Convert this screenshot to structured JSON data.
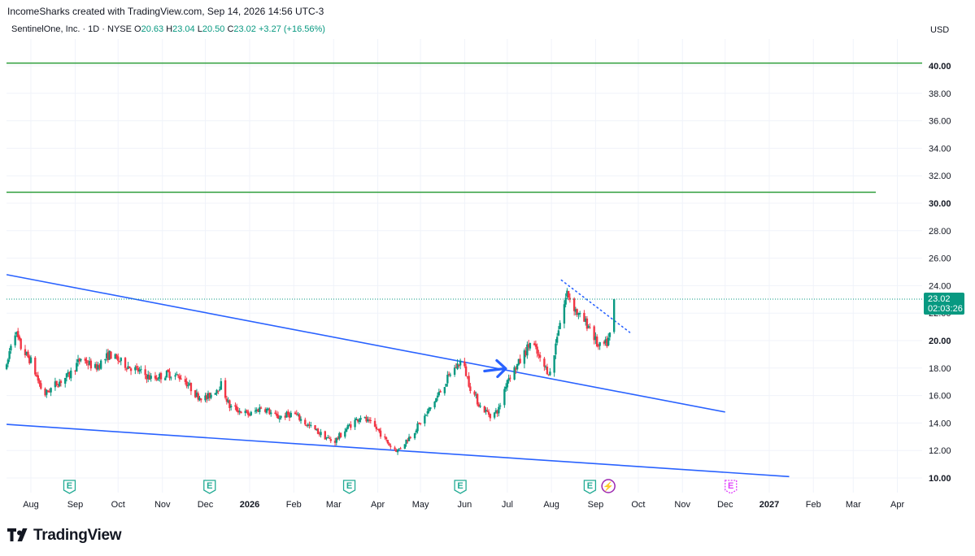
{
  "header": {
    "attribution": "IncomeSharks created with TradingView.com, Sep 14, 2026 14:56 UTC-3"
  },
  "legend": {
    "symbol": "SentinelOne, Inc. · 1D · NYSE",
    "open_label": "O",
    "open": "20.63",
    "high_label": "H",
    "high": "23.04",
    "low_label": "L",
    "low": "20.50",
    "close_label": "C",
    "close": "23.02",
    "change": "+3.27 (+16.56%)"
  },
  "currency": "USD",
  "price_tag": {
    "price": "23.02",
    "countdown": "02:03:26"
  },
  "footer": {
    "brand": "TradingView"
  },
  "colors": {
    "up": "#089981",
    "down": "#f23645",
    "trendline": "#2962ff",
    "level": "#2e9e3a",
    "grid": "#f0f3fa",
    "earnings": "#22ab94",
    "dividend": "#9c27b0"
  },
  "chart_data": {
    "type": "candlestick",
    "ylim": [
      9,
      42
    ],
    "y_ticks": [
      "10.00",
      "12.00",
      "14.00",
      "16.00",
      "18.00",
      "20.00",
      "22.00",
      "24.00",
      "26.00",
      "28.00",
      "30.00",
      "32.00",
      "34.00",
      "36.00",
      "38.00",
      "40.00"
    ],
    "x_ticks": [
      {
        "label": "Aug",
        "bold": false
      },
      {
        "label": "Sep",
        "bold": false
      },
      {
        "label": "Oct",
        "bold": false
      },
      {
        "label": "Nov",
        "bold": false
      },
      {
        "label": "Dec",
        "bold": false
      },
      {
        "label": "2026",
        "bold": true
      },
      {
        "label": "Feb",
        "bold": false
      },
      {
        "label": "Mar",
        "bold": false
      },
      {
        "label": "Apr",
        "bold": false
      },
      {
        "label": "May",
        "bold": false
      },
      {
        "label": "Jun",
        "bold": false
      },
      {
        "label": "Jul",
        "bold": false
      },
      {
        "label": "Aug",
        "bold": false
      },
      {
        "label": "Sep",
        "bold": false
      },
      {
        "label": "Oct",
        "bold": false
      },
      {
        "label": "Nov",
        "bold": false
      },
      {
        "label": "Dec",
        "bold": false
      },
      {
        "label": "2027",
        "bold": true
      },
      {
        "label": "Feb",
        "bold": false
      },
      {
        "label": "Mar",
        "bold": false
      },
      {
        "label": "Apr",
        "bold": false
      }
    ],
    "horizontal_levels": [
      40.2,
      30.8
    ],
    "trendlines": [
      {
        "name": "upper",
        "from": [
          "2025-07-15",
          24.8
        ],
        "to": [
          "2026-12-01",
          14.8
        ]
      },
      {
        "name": "lower",
        "from": [
          "2025-07-15",
          13.9
        ],
        "to": [
          "2027-01-15",
          10.1
        ]
      }
    ],
    "dotted_resistance": {
      "from": [
        "2026-08-08",
        24.4
      ],
      "to": [
        "2026-09-25",
        20.6
      ]
    },
    "arrow_at": [
      "2026-07-01",
      17.9
    ],
    "events": [
      {
        "type": "earnings",
        "label": "E",
        "date": "2025-08-28"
      },
      {
        "type": "earnings",
        "label": "E",
        "date": "2025-12-04"
      },
      {
        "type": "earnings",
        "label": "E",
        "date": "2026-03-12"
      },
      {
        "type": "earnings",
        "label": "E",
        "date": "2026-05-29"
      },
      {
        "type": "earnings",
        "label": "E",
        "date": "2026-08-28"
      },
      {
        "type": "split",
        "label": "⚡",
        "date": "2026-09-10"
      },
      {
        "type": "earnings-future",
        "label": "E",
        "date": "2026-12-05"
      }
    ],
    "price_path": [
      [
        "2025-07-15",
        18.0
      ],
      [
        "2025-07-20",
        21.0
      ],
      [
        "2025-07-25",
        19.5
      ],
      [
        "2025-08-01",
        18.5
      ],
      [
        "2025-08-10",
        16.0
      ],
      [
        "2025-08-18",
        16.8
      ],
      [
        "2025-08-28",
        17.5
      ],
      [
        "2025-09-05",
        18.7
      ],
      [
        "2025-09-15",
        18.0
      ],
      [
        "2025-09-25",
        19.0
      ],
      [
        "2025-10-05",
        18.3
      ],
      [
        "2025-10-15",
        17.8
      ],
      [
        "2025-10-25",
        17.2
      ],
      [
        "2025-11-05",
        17.6
      ],
      [
        "2025-11-15",
        17.3
      ],
      [
        "2025-11-25",
        16.0
      ],
      [
        "2025-12-02",
        15.8
      ],
      [
        "2025-12-12",
        16.8
      ],
      [
        "2025-12-18",
        15.2
      ],
      [
        "2026-01-01",
        14.6
      ],
      [
        "2026-01-10",
        15.2
      ],
      [
        "2026-01-20",
        14.4
      ],
      [
        "2026-02-01",
        14.7
      ],
      [
        "2026-02-10",
        13.9
      ],
      [
        "2026-02-20",
        13.2
      ],
      [
        "2026-03-01",
        12.6
      ],
      [
        "2026-03-12",
        13.8
      ],
      [
        "2026-03-20",
        14.5
      ],
      [
        "2026-04-01",
        13.5
      ],
      [
        "2026-04-10",
        12.3
      ],
      [
        "2026-04-15",
        12.0
      ],
      [
        "2026-04-25",
        13.2
      ],
      [
        "2026-05-05",
        14.6
      ],
      [
        "2026-05-15",
        16.3
      ],
      [
        "2026-05-22",
        17.6
      ],
      [
        "2026-05-30",
        18.6
      ],
      [
        "2026-06-05",
        16.6
      ],
      [
        "2026-06-12",
        15.2
      ],
      [
        "2026-06-20",
        14.5
      ],
      [
        "2026-06-25",
        15.0
      ],
      [
        "2026-07-01",
        17.2
      ],
      [
        "2026-07-10",
        18.5
      ],
      [
        "2026-07-18",
        20.0
      ],
      [
        "2026-07-25",
        18.3
      ],
      [
        "2026-08-01",
        17.5
      ],
      [
        "2026-08-05",
        20.5
      ],
      [
        "2026-08-12",
        23.5
      ],
      [
        "2026-08-20",
        21.8
      ],
      [
        "2026-08-28",
        21.0
      ],
      [
        "2026-09-03",
        19.5
      ],
      [
        "2026-09-09",
        19.8
      ],
      [
        "2026-09-12",
        20.63
      ],
      [
        "2026-09-14",
        23.02
      ]
    ]
  }
}
